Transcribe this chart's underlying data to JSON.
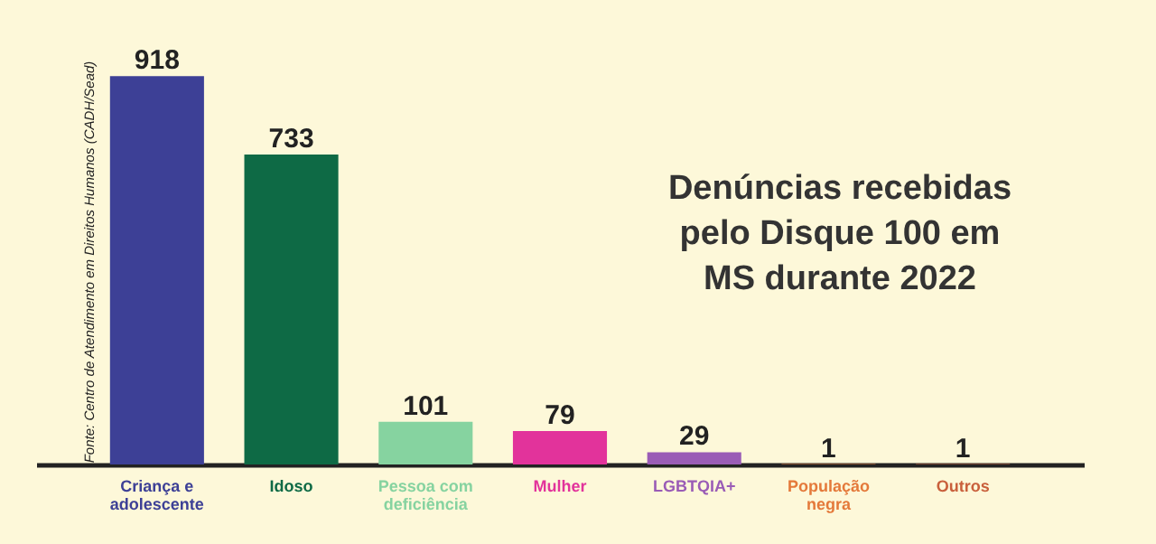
{
  "chart_data": {
    "type": "bar",
    "title": "Denúncias recebidas pelo Disque 100 em MS durante 2022",
    "categories": [
      "Criança e adolescente",
      "Idoso",
      "Pessoa com deficiência",
      "Mulher",
      "LGBTQIA+",
      "População negra",
      "Outros"
    ],
    "values": [
      918,
      733,
      101,
      79,
      29,
      1,
      1
    ],
    "colors": [
      "#3d4096",
      "#0e6a45",
      "#86d3a0",
      "#e2339b",
      "#9a5cb6",
      "#e4793a",
      "#c9603c"
    ],
    "data_labels": true,
    "annotations": [
      "Fonte: Centro de Atendimento em Direitos Humanos (CADH/Sead)"
    ]
  }
}
